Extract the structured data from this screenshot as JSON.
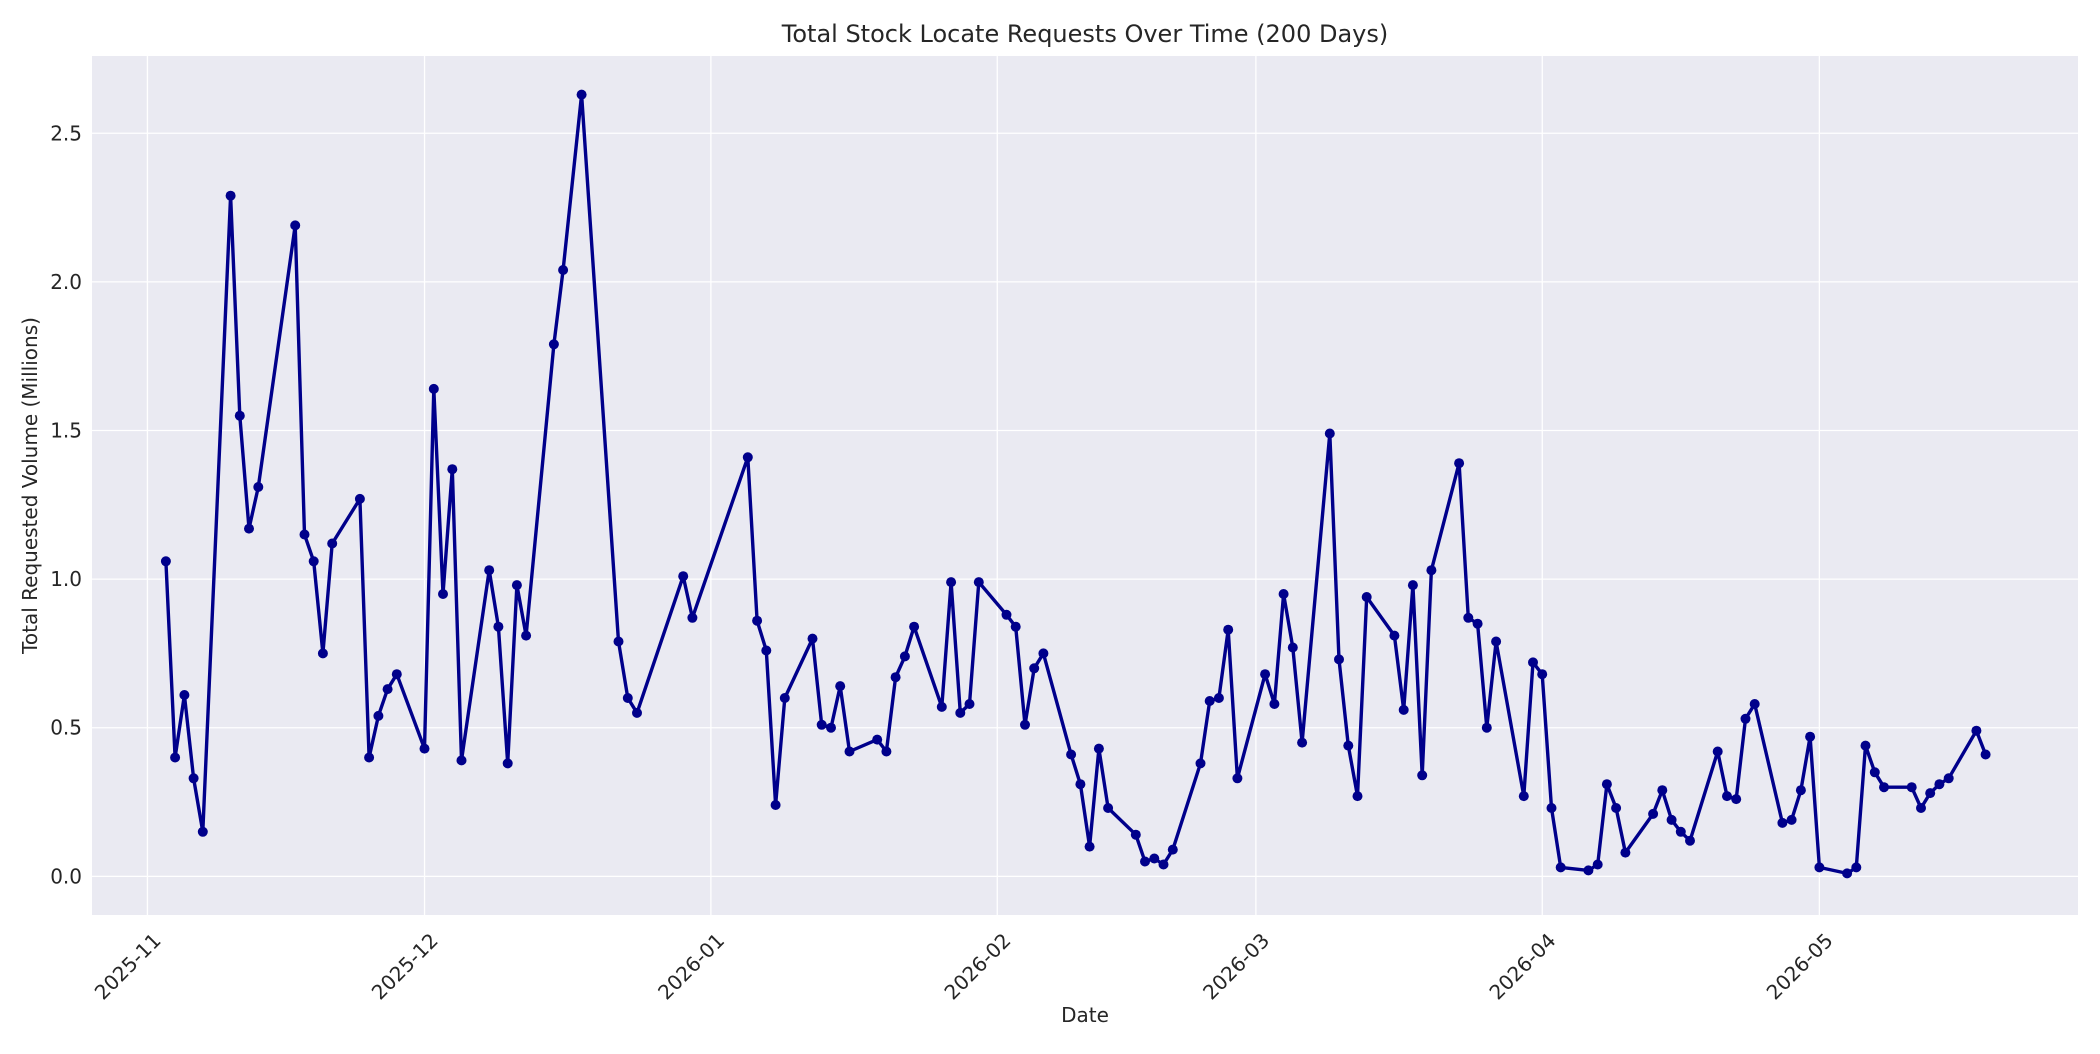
{
  "chart_data": {
    "type": "line",
    "title": "Total Stock Locate Requests Over Time (200 Days)",
    "xlabel": "Date",
    "ylabel": "Total Requested Volume (Millions)",
    "xlim": [
      "2025-10-26",
      "2026-05-29"
    ],
    "ylim": [
      -0.13,
      2.76
    ],
    "x_ticks": [
      "2025-11-01",
      "2025-12-01",
      "2026-01-01",
      "2026-02-01",
      "2026-03-01",
      "2026-04-01",
      "2026-05-01"
    ],
    "x_tick_labels": [
      "2025-11",
      "2025-12",
      "2026-01",
      "2026-02",
      "2026-03",
      "2026-04",
      "2026-05"
    ],
    "y_ticks": [
      0.0,
      0.5,
      1.0,
      1.5,
      2.0,
      2.5
    ],
    "y_tick_labels": [
      "0.0",
      "0.5",
      "1.0",
      "1.5",
      "2.0",
      "2.5"
    ],
    "grid": true,
    "colors": {
      "line": "#00008b",
      "plot_bg": "#eaeaf2",
      "grid": "#ffffff",
      "text": "#262626"
    },
    "series": [
      {
        "x": [
          "2025-11-03",
          "2025-11-04",
          "2025-11-05",
          "2025-11-06",
          "2025-11-07",
          "2025-11-10",
          "2025-11-11",
          "2025-11-12",
          "2025-11-13",
          "2025-11-17",
          "2025-11-18",
          "2025-11-19",
          "2025-11-20",
          "2025-11-21",
          "2025-11-24",
          "2025-11-25",
          "2025-11-26",
          "2025-11-27",
          "2025-11-28",
          "2025-12-01",
          "2025-12-02",
          "2025-12-03",
          "2025-12-04",
          "2025-12-05",
          "2025-12-08",
          "2025-12-09",
          "2025-12-10",
          "2025-12-11",
          "2025-12-12",
          "2025-12-15",
          "2025-12-16",
          "2025-12-18",
          "2025-12-22",
          "2025-12-23",
          "2025-12-24",
          "2025-12-29",
          "2025-12-30",
          "2026-01-05",
          "2026-01-06",
          "2026-01-07",
          "2026-01-08",
          "2026-01-09",
          "2026-01-12",
          "2026-01-13",
          "2026-01-14",
          "2026-01-15",
          "2026-01-16",
          "2026-01-19",
          "2026-01-20",
          "2026-01-21",
          "2026-01-22",
          "2026-01-23",
          "2026-01-26",
          "2026-01-27",
          "2026-01-28",
          "2026-01-29",
          "2026-01-30",
          "2026-02-02",
          "2026-02-03",
          "2026-02-04",
          "2026-02-05",
          "2026-02-06",
          "2026-02-09",
          "2026-02-10",
          "2026-02-11",
          "2026-02-12",
          "2026-02-13",
          "2026-02-16",
          "2026-02-17",
          "2026-02-18",
          "2026-02-19",
          "2026-02-20",
          "2026-02-23",
          "2026-02-24",
          "2026-02-25",
          "2026-02-26",
          "2026-02-27",
          "2026-03-02",
          "2026-03-03",
          "2026-03-04",
          "2026-03-05",
          "2026-03-06",
          "2026-03-09",
          "2026-03-10",
          "2026-03-11",
          "2026-03-12",
          "2026-03-13",
          "2026-03-16",
          "2026-03-17",
          "2026-03-18",
          "2026-03-19",
          "2026-03-20",
          "2026-03-23",
          "2026-03-24",
          "2026-03-25",
          "2026-03-26",
          "2026-03-27",
          "2026-03-30",
          "2026-03-31",
          "2026-04-01",
          "2026-04-02",
          "2026-04-03",
          "2026-04-06",
          "2026-04-07",
          "2026-04-08",
          "2026-04-09",
          "2026-04-10",
          "2026-04-13",
          "2026-04-14",
          "2026-04-15",
          "2026-04-16",
          "2026-04-17",
          "2026-04-20",
          "2026-04-21",
          "2026-04-22",
          "2026-04-23",
          "2026-04-24",
          "2026-04-27",
          "2026-04-28",
          "2026-04-29",
          "2026-04-30",
          "2026-05-01",
          "2026-05-04",
          "2026-05-05",
          "2026-05-06",
          "2026-05-07",
          "2026-05-08",
          "2026-05-11",
          "2026-05-12",
          "2026-05-13",
          "2026-05-14",
          "2026-05-15",
          "2026-05-18",
          "2026-05-19"
        ],
        "y": [
          1.06,
          0.4,
          0.61,
          0.33,
          0.15,
          2.29,
          1.55,
          1.17,
          1.31,
          2.19,
          1.15,
          1.06,
          0.75,
          1.12,
          1.27,
          0.4,
          0.54,
          0.63,
          0.68,
          0.43,
          1.64,
          0.95,
          1.37,
          0.39,
          1.03,
          0.84,
          0.38,
          0.98,
          0.81,
          1.79,
          2.04,
          2.63,
          0.79,
          0.6,
          0.55,
          1.01,
          0.87,
          1.41,
          0.86,
          0.76,
          0.24,
          0.6,
          0.8,
          0.51,
          0.5,
          0.64,
          0.42,
          0.46,
          0.42,
          0.67,
          0.74,
          0.84,
          0.57,
          0.99,
          0.55,
          0.58,
          0.99,
          0.88,
          0.84,
          0.51,
          0.7,
          0.75,
          0.41,
          0.31,
          0.1,
          0.43,
          0.23,
          0.14,
          0.05,
          0.06,
          0.04,
          0.09,
          0.38,
          0.59,
          0.6,
          0.83,
          0.33,
          0.68,
          0.58,
          0.95,
          0.77,
          0.45,
          1.49,
          0.73,
          0.44,
          0.27,
          0.94,
          0.81,
          0.56,
          0.98,
          0.34,
          1.03,
          1.39,
          0.87,
          0.85,
          0.5,
          0.79,
          0.27,
          0.72,
          0.68,
          0.23,
          0.03,
          0.02,
          0.04,
          0.31,
          0.23,
          0.08,
          0.21,
          0.29,
          0.19,
          0.15,
          0.12,
          0.42,
          0.27,
          0.26,
          0.53,
          0.58,
          0.18,
          0.19,
          0.29,
          0.47,
          0.03,
          0.01,
          0.03,
          0.44,
          0.35,
          0.3,
          0.3,
          0.23,
          0.28,
          0.31,
          0.33,
          0.49,
          0.41
        ]
      }
    ]
  }
}
